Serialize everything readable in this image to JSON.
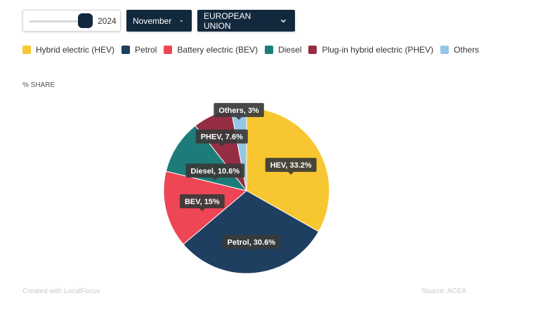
{
  "controls": {
    "year": "2024",
    "month": "November",
    "region": "EUROPEAN UNION"
  },
  "share_label": "% SHARE",
  "credits": {
    "left": "Created with LocalFocus",
    "right": "Source:  ACEA"
  },
  "chart_data": {
    "type": "pie",
    "title": "",
    "legend_placement": "top-left",
    "slices": [
      {
        "name": "Hybrid electric (HEV)",
        "short": "HEV",
        "value": 33.2,
        "color": "#f8c630"
      },
      {
        "name": "Petrol",
        "short": "Petrol",
        "value": 30.6,
        "color": "#1e3f60"
      },
      {
        "name": "Battery electric (BEV)",
        "short": "BEV",
        "value": 15,
        "color": "#ee4655"
      },
      {
        "name": "Diesel",
        "short": "Diesel",
        "value": 10.6,
        "color": "#1d7c79"
      },
      {
        "name": "Plug-in hybrid electric (PHEV)",
        "short": "PHEV",
        "value": 7.6,
        "color": "#952e43"
      },
      {
        "name": "Others",
        "short": "Others",
        "value": 3,
        "color": "#94c6e6"
      }
    ]
  }
}
